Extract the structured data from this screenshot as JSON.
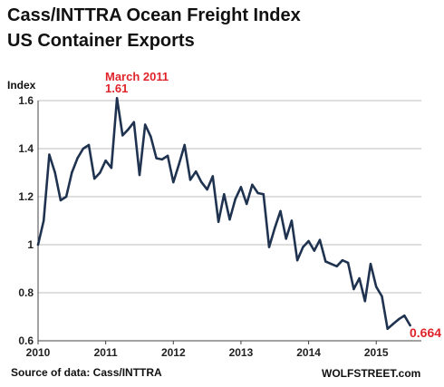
{
  "chart_data": {
    "type": "line",
    "title": "Cass/INTTRA Ocean Freight Index",
    "subtitle": "US Container Exports",
    "ylabel": "Index",
    "xlabel": "",
    "x_ticks": [
      "2010",
      "2011",
      "2012",
      "2013",
      "2014",
      "2015"
    ],
    "y_ticks": [
      "0.6",
      "0.8",
      "1",
      "1.2",
      "1.4",
      "1.6"
    ],
    "ylim": [
      0.6,
      1.6
    ],
    "xlim": [
      0,
      68
    ],
    "grid": true,
    "line_color": "#1f3350",
    "series": [
      {
        "values": [
          1.0,
          1.1,
          1.375,
          1.3,
          1.185,
          1.2,
          1.3,
          1.36,
          1.4,
          1.415,
          1.275,
          1.3,
          1.35,
          1.32,
          1.61,
          1.455,
          1.48,
          1.51,
          1.29,
          1.5,
          1.45,
          1.36,
          1.355,
          1.37,
          1.26,
          1.335,
          1.415,
          1.27,
          1.305,
          1.26,
          1.23,
          1.285,
          1.095,
          1.21,
          1.105,
          1.19,
          1.24,
          1.17,
          1.25,
          1.215,
          1.21,
          0.99,
          1.07,
          1.14,
          1.025,
          1.1,
          0.935,
          0.99,
          1.015,
          0.975,
          1.02,
          0.93,
          0.92,
          0.91,
          0.935,
          0.925,
          0.815,
          0.86,
          0.765,
          0.92,
          0.825,
          0.785,
          0.65,
          0.67,
          0.69,
          0.705,
          0.664
        ]
      }
    ],
    "annotations": {
      "peak_label": "March 2011",
      "peak_value": "1.61",
      "last_value": "0.664"
    },
    "source": "Source of data: Cass/INTTRA",
    "brand": "WOLFSTREET.com"
  }
}
